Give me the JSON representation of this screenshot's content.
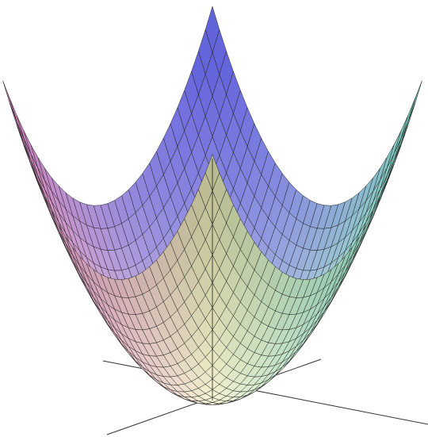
{
  "chart_data": {
    "type": "surface"
  }
}
